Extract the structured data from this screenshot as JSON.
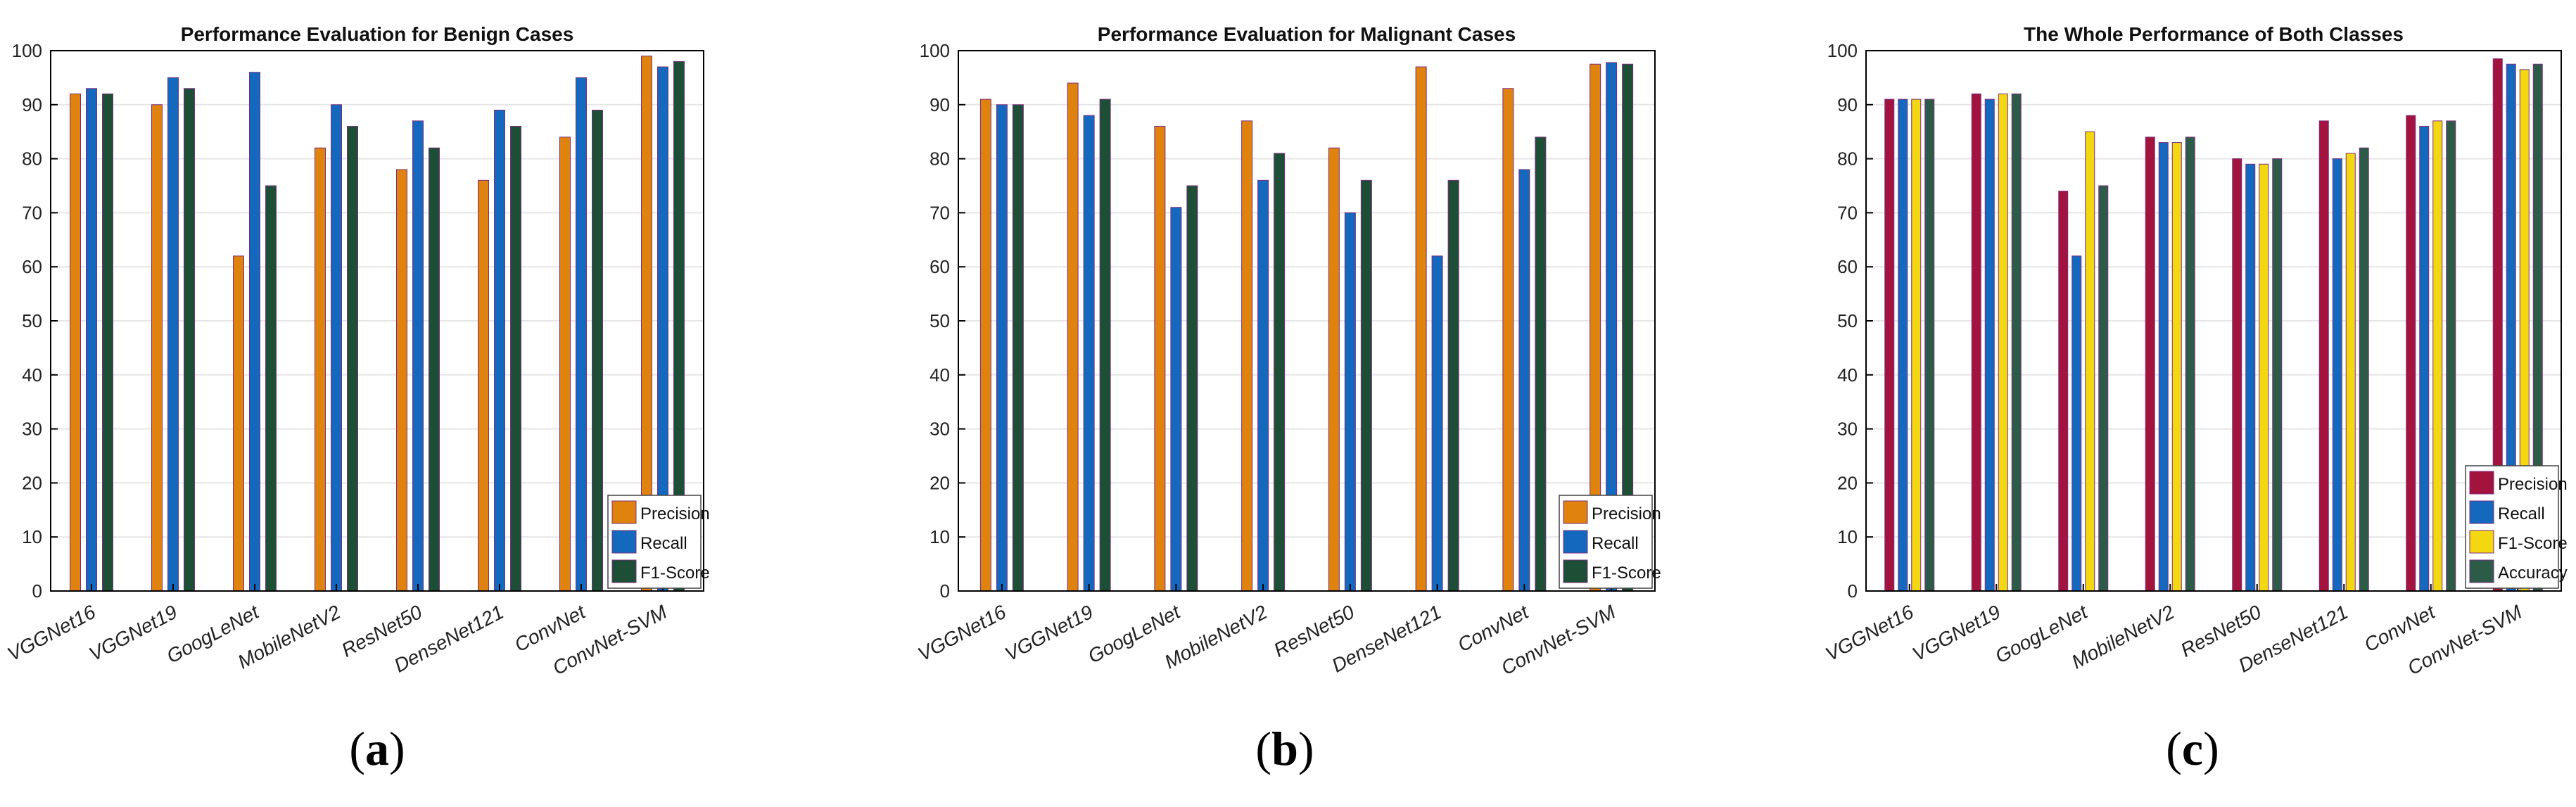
{
  "colors": {
    "precision": "#E0820E",
    "recall": "#1469BE",
    "f1": "#1C4F36",
    "precision_c": "#A2143E",
    "f1_c": "#F2D711",
    "accuracy_c": "#2C5B48",
    "edge": "#7B2E7E",
    "grid": "#E6E6E6",
    "axis": "#000000"
  },
  "chart_data": [
    {
      "id": "a",
      "type": "bar",
      "title": "Performance Evaluation for Benign Cases",
      "caption_letter": "a",
      "categories": [
        "VGGNet16",
        "VGGNet19",
        "GoogLeNet",
        "MobileNetV2",
        "ResNet50",
        "DenseNet121",
        "ConvNet",
        "ConvNet-SVM"
      ],
      "series": [
        {
          "name": "Precision",
          "color": "#E0820E",
          "values": [
            92,
            90,
            62,
            82,
            78,
            76,
            84,
            99
          ]
        },
        {
          "name": "Recall",
          "color": "#1469BE",
          "values": [
            93,
            95,
            96,
            90,
            87,
            89,
            95,
            97
          ]
        },
        {
          "name": "F1-Score",
          "color": "#1C4F36",
          "values": [
            92,
            93,
            75,
            86,
            82,
            86,
            89,
            98
          ]
        }
      ],
      "yticks": [
        "0",
        "10",
        "20",
        "30",
        "40",
        "50",
        "60",
        "70",
        "80",
        "90",
        "100"
      ],
      "ylim": [
        0,
        100
      ],
      "grid": true,
      "legend": "bottom-right"
    },
    {
      "id": "b",
      "type": "bar",
      "title": "Performance Evaluation for Malignant Cases",
      "caption_letter": "b",
      "categories": [
        "VGGNet16",
        "VGGNet19",
        "GoogLeNet",
        "MobileNetV2",
        "ResNet50",
        "DenseNet121",
        "ConvNet",
        "ConvNet-SVM"
      ],
      "series": [
        {
          "name": "Precision",
          "color": "#E0820E",
          "values": [
            91,
            94,
            86,
            87,
            82,
            97,
            93,
            97.5
          ]
        },
        {
          "name": "Recall",
          "color": "#1469BE",
          "values": [
            90,
            88,
            71,
            76,
            70,
            62,
            78,
            97.8
          ]
        },
        {
          "name": "F1-Score",
          "color": "#1C4F36",
          "values": [
            90,
            91,
            75,
            81,
            76,
            76,
            84,
            97.5
          ]
        }
      ],
      "yticks": [
        "0",
        "10",
        "20",
        "30",
        "40",
        "50",
        "60",
        "70",
        "80",
        "90",
        "100"
      ],
      "ylim": [
        0,
        100
      ],
      "grid": true,
      "legend": "bottom-right"
    },
    {
      "id": "c",
      "type": "bar",
      "title": "The Whole Performance of Both Classes",
      "caption_letter": "c",
      "categories": [
        "VGGNet16",
        "VGGNet19",
        "GoogLeNet",
        "MobileNetV2",
        "ResNet50",
        "DenseNet121",
        "ConvNet",
        "ConvNet-SVM"
      ],
      "series": [
        {
          "name": "Precision",
          "color": "#A2143E",
          "values": [
            91,
            92,
            74,
            84,
            80,
            87,
            88,
            98.5
          ]
        },
        {
          "name": "Recall",
          "color": "#1469BE",
          "values": [
            91,
            91,
            62,
            83,
            79,
            80,
            86,
            97.5
          ]
        },
        {
          "name": "F1-Score",
          "color": "#F2D711",
          "values": [
            91,
            92,
            85,
            83,
            79,
            81,
            87,
            96.5
          ]
        },
        {
          "name": "Accuracy",
          "color": "#2C5B48",
          "values": [
            91,
            92,
            75,
            84,
            80,
            82,
            87,
            97.5
          ]
        }
      ],
      "yticks": [
        "0",
        "10",
        "20",
        "30",
        "40",
        "50",
        "60",
        "70",
        "80",
        "90",
        "100"
      ],
      "ylim": [
        0,
        100
      ],
      "grid": true,
      "legend": "bottom-right"
    }
  ]
}
